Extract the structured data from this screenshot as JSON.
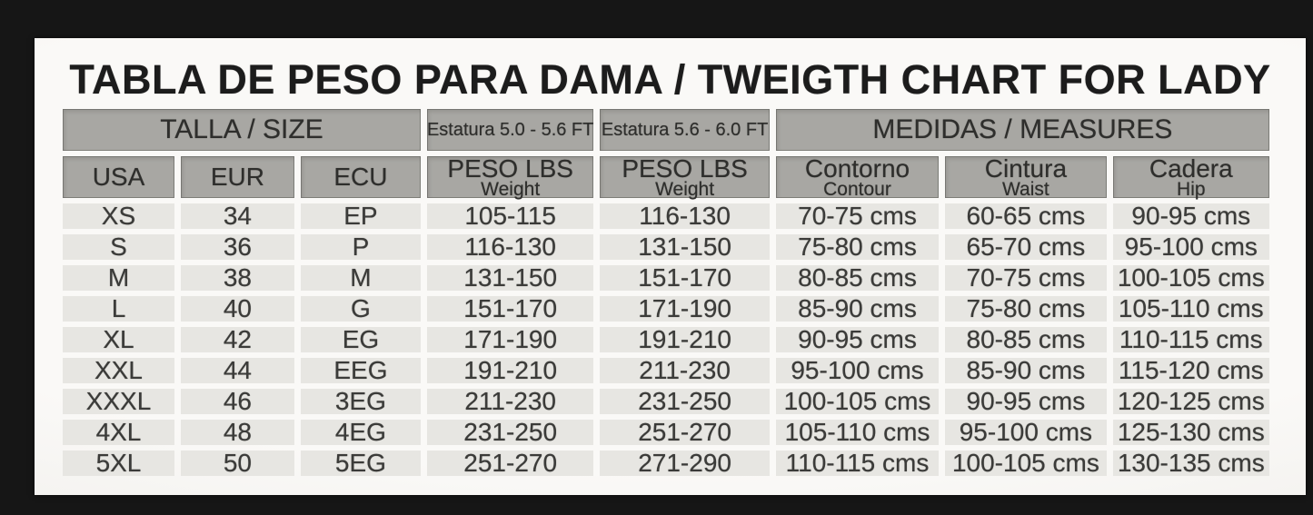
{
  "page": {
    "title": "TABLA DE PESO PARA DAMA / TWEIGTH CHART FOR LADY"
  },
  "table": {
    "group_headers": [
      {
        "label": "TALLA / SIZE",
        "span": 3,
        "small": false
      },
      {
        "label": "Estatura 5.0 - 5.6 FT",
        "span": 1,
        "small": true
      },
      {
        "label": "Estatura 5.6 - 6.0 FT",
        "span": 1,
        "small": true
      },
      {
        "label": "MEDIDAS / MEASURES",
        "span": 3,
        "small": false
      }
    ],
    "columns": [
      {
        "title": "USA",
        "subtitle": ""
      },
      {
        "title": "EUR",
        "subtitle": ""
      },
      {
        "title": "ECU",
        "subtitle": ""
      },
      {
        "title": "PESO LBS",
        "subtitle": "Weight"
      },
      {
        "title": "PESO LBS",
        "subtitle": "Weight"
      },
      {
        "title": "Contorno",
        "subtitle": "Contour"
      },
      {
        "title": "Cintura",
        "subtitle": "Waist"
      },
      {
        "title": "Cadera",
        "subtitle": "Hip"
      }
    ],
    "rows": [
      [
        "XS",
        "34",
        "EP",
        "105-115",
        "116-130",
        "70-75 cms",
        "60-65 cms",
        "90-95 cms"
      ],
      [
        "S",
        "36",
        "P",
        "116-130",
        "131-150",
        "75-80 cms",
        "65-70 cms",
        "95-100 cms"
      ],
      [
        "M",
        "38",
        "M",
        "131-150",
        "151-170",
        "80-85 cms",
        "70-75 cms",
        "100-105 cms"
      ],
      [
        "L",
        "40",
        "G",
        "151-170",
        "171-190",
        "85-90 cms",
        "75-80 cms",
        "105-110 cms"
      ],
      [
        "XL",
        "42",
        "EG",
        "171-190",
        "191-210",
        "90-95 cms",
        "80-85 cms",
        "110-115 cms"
      ],
      [
        "XXL",
        "44",
        "EEG",
        "191-210",
        "211-230",
        "95-100 cms",
        "85-90 cms",
        "115-120 cms"
      ],
      [
        "XXXL",
        "46",
        "3EG",
        "211-230",
        "231-250",
        "100-105 cms",
        "90-95 cms",
        "120-125 cms"
      ],
      [
        "4XL",
        "48",
        "4EG",
        "231-250",
        "251-270",
        "105-110 cms",
        "95-100 cms",
        "125-130 cms"
      ],
      [
        "5XL",
        "50",
        "5EG",
        "251-270",
        "271-290",
        "110-115 cms",
        "100-105 cms",
        "130-135 cms"
      ]
    ]
  },
  "colors": {
    "frame_bg": "#161616",
    "page_bg": "#faf9f7",
    "header_bg": "#a8a7a3",
    "header_text": "#2e2e2c",
    "cell_bg": "#e7e6e2",
    "cell_text": "#3b3b39",
    "title_color": "#1c1c1c"
  }
}
